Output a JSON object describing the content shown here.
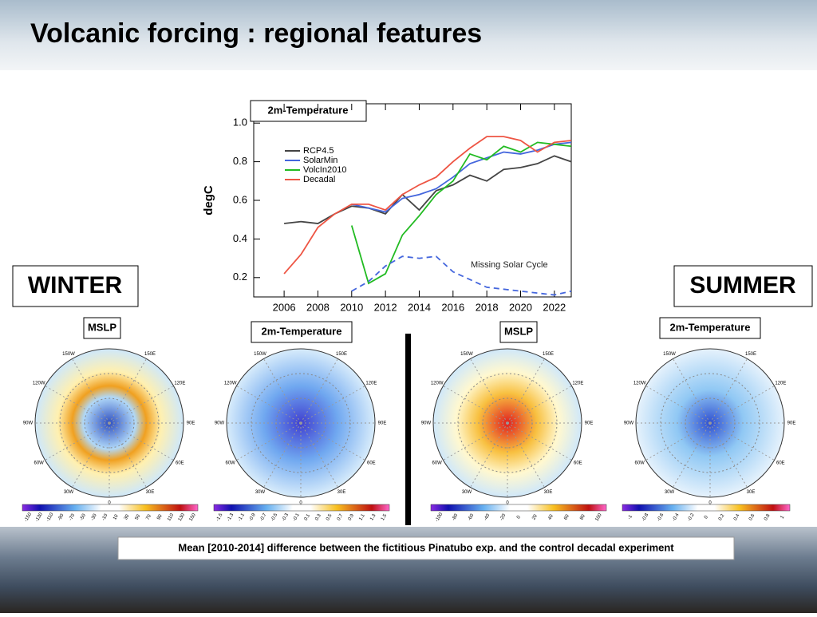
{
  "slide_title": "Volcanic forcing : regional features",
  "winter_label": "WINTER",
  "summer_label": "SUMMER",
  "caption": "Mean [2010-2014] difference between the fictitious Pinatubo exp.  and the control decadal experiment",
  "chart_data": {
    "type": "line",
    "title": "2m-Temperature",
    "y_label": "degC",
    "x": [
      2006,
      2007,
      2008,
      2009,
      2010,
      2011,
      2012,
      2013,
      2014,
      2015,
      2016,
      2017,
      2018,
      2019,
      2020,
      2021,
      2022,
      2023
    ],
    "xlim": [
      2004.2,
      2023
    ],
    "xticks": [
      2006,
      2008,
      2010,
      2012,
      2014,
      2016,
      2018,
      2020,
      2022
    ],
    "ylim": [
      0.1,
      1.1
    ],
    "yticks": [
      0.2,
      0.4,
      0.6,
      0.8,
      {
        "value": 1.0,
        "label": "1.0"
      }
    ],
    "legend": "upper left",
    "series": [
      {
        "name": "RCP4.5",
        "color": "#444444",
        "values": [
          0.48,
          0.49,
          0.48,
          0.53,
          0.57,
          0.56,
          0.53,
          0.63,
          0.55,
          0.65,
          0.68,
          0.73,
          0.7,
          0.76,
          0.77,
          0.79,
          0.83,
          0.8
        ]
      },
      {
        "name": "SolarMin",
        "color": "#4466dd",
        "values": [
          null,
          null,
          null,
          null,
          0.58,
          0.56,
          0.54,
          0.61,
          0.63,
          0.66,
          0.72,
          0.79,
          0.82,
          0.85,
          0.84,
          0.86,
          0.89,
          0.9
        ]
      },
      {
        "name": "VolcIn2010",
        "color": "#22bb22",
        "values": [
          null,
          null,
          null,
          null,
          0.47,
          0.17,
          0.22,
          0.42,
          0.52,
          0.63,
          0.7,
          0.84,
          0.81,
          0.88,
          0.85,
          0.9,
          0.89,
          0.88
        ]
      },
      {
        "name": "Decadal",
        "color": "#ee5544",
        "values": [
          0.22,
          0.32,
          0.46,
          0.53,
          0.58,
          0.58,
          0.55,
          0.63,
          0.68,
          0.72,
          0.8,
          0.87,
          0.93,
          0.93,
          0.91,
          0.85,
          0.9,
          0.91
        ]
      },
      {
        "name": "Missing Solar Cycle",
        "color": "#4466dd",
        "dashed": true,
        "legend": false,
        "values": [
          null,
          null,
          null,
          null,
          0.13,
          0.18,
          0.26,
          0.31,
          0.3,
          0.31,
          0.23,
          0.19,
          0.15,
          0.14,
          0.13,
          0.12,
          0.11,
          0.13
        ]
      }
    ]
  },
  "meridians": [
    "150W",
    "150E",
    "120W",
    "120E",
    "90W",
    "90E",
    "60W",
    "60E",
    "30W",
    "30E",
    "0"
  ],
  "maps": [
    {
      "label": "MSLP",
      "colorbar": [
        "-150",
        "-130",
        "-110",
        "-90",
        "-70",
        "-50",
        "-30",
        "-10",
        "10",
        "30",
        "50",
        "70",
        "90",
        "110",
        "130",
        "150"
      ]
    },
    {
      "label": "2m-Temperature",
      "colorbar": [
        "-1.5",
        "-1.3",
        "-1.1",
        "-0.9",
        "-0.7",
        "-0.5",
        "-0.3",
        "-0.1",
        "0.1",
        "0.3",
        "0.5",
        "0.7",
        "0.9",
        "1.1",
        "1.3",
        "1.5"
      ]
    },
    {
      "label": "MSLP",
      "colorbar": [
        "-100",
        "-80",
        "-60",
        "-40",
        "-20",
        "0",
        "20",
        "40",
        "60",
        "80",
        "100"
      ]
    },
    {
      "label": "2m-Temperature",
      "colorbar": [
        "-1",
        "-0.8",
        "-0.6",
        "-0.4",
        "-0.2",
        "0",
        "0.2",
        "0.4",
        "0.6",
        "0.8",
        "1"
      ]
    }
  ]
}
